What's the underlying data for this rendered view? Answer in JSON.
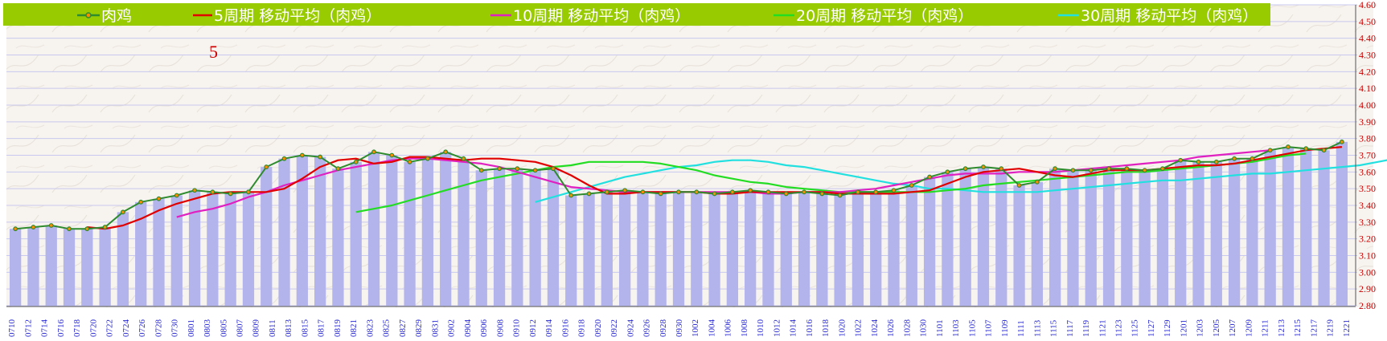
{
  "chart_data": {
    "type": "line",
    "annotation": "5",
    "ylim": [
      2.8,
      4.6
    ],
    "y_ticks": [
      "2.80",
      "2.90",
      "3.00",
      "3.10",
      "3.20",
      "3.30",
      "3.40",
      "3.50",
      "3.60",
      "3.70",
      "3.80",
      "3.90",
      "4.00",
      "4.10",
      "4.20",
      "4.30",
      "4.40",
      "4.50",
      "4.60"
    ],
    "x_tick_labels": [
      "0710",
      "0712",
      "0714",
      "0716",
      "0718",
      "0720",
      "0722",
      "0724",
      "0726",
      "0728",
      "0730",
      "0801",
      "0803",
      "0805",
      "0807",
      "0809",
      "0811",
      "0813",
      "0815",
      "0817",
      "0819",
      "0821",
      "0823",
      "0825",
      "0827",
      "0829",
      "0831",
      "0902",
      "0904",
      "0906",
      "0908",
      "0910",
      "0912",
      "0914",
      "0916",
      "0918",
      "0920",
      "0922",
      "0924",
      "0926",
      "0928",
      "0930",
      "1002",
      "1004",
      "1006",
      "1008",
      "1010",
      "1012",
      "1014",
      "1016",
      "1018",
      "1020",
      "1022",
      "1024",
      "1026",
      "1028",
      "1030",
      "1101",
      "1103",
      "1105",
      "1107",
      "1109",
      "1111",
      "1113",
      "1115",
      "1117",
      "1119",
      "1121",
      "1123",
      "1125",
      "1127",
      "1129",
      "1201",
      "1203",
      "1205",
      "1207",
      "1209",
      "1211",
      "1213",
      "1215",
      "1217",
      "1219",
      "1221"
    ],
    "series": [
      {
        "name": "肉鸡",
        "color": "#2e8b2e",
        "marker_fill": "#ff8c00",
        "markers": true,
        "stroke_width": 2,
        "values": [
          3.26,
          3.27,
          3.28,
          3.26,
          3.26,
          3.27,
          3.36,
          3.42,
          3.44,
          3.46,
          3.49,
          3.48,
          3.47,
          3.48,
          3.63,
          3.68,
          3.7,
          3.69,
          3.62,
          3.66,
          3.72,
          3.7,
          3.66,
          3.68,
          3.72,
          3.68,
          3.61,
          3.62,
          3.62,
          3.61,
          3.62,
          3.46,
          3.47,
          3.48,
          3.49,
          3.48,
          3.47,
          3.48,
          3.48,
          3.47,
          3.48,
          3.49,
          3.48,
          3.47,
          3.48,
          3.47,
          3.46,
          3.48,
          3.48,
          3.49,
          3.52,
          3.57,
          3.6,
          3.62,
          3.63,
          3.62,
          3.52,
          3.54,
          3.62,
          3.61,
          3.61,
          3.62,
          3.62,
          3.61,
          3.62,
          3.67,
          3.66,
          3.66,
          3.68,
          3.68,
          3.73,
          3.75,
          3.74,
          3.73,
          3.78
        ]
      },
      {
        "name": "5周期 移动平均（肉鸡）",
        "color": "#e00000",
        "markers": false,
        "stroke_width": 2.2,
        "start_index": 4,
        "values": [
          3.27,
          3.26,
          3.28,
          3.32,
          3.37,
          3.41,
          3.44,
          3.47,
          3.48,
          3.48,
          3.48,
          3.5,
          3.56,
          3.63,
          3.67,
          3.68,
          3.65,
          3.66,
          3.69,
          3.69,
          3.68,
          3.67,
          3.68,
          3.68,
          3.67,
          3.66,
          3.63,
          3.58,
          3.52,
          3.47,
          3.47,
          3.48,
          3.48,
          3.48,
          3.48,
          3.47,
          3.47,
          3.48,
          3.48,
          3.48,
          3.48,
          3.48,
          3.47,
          3.47,
          3.47,
          3.47,
          3.48,
          3.49,
          3.53,
          3.57,
          3.6,
          3.61,
          3.62,
          3.6,
          3.58,
          3.57,
          3.59,
          3.61,
          3.61,
          3.61,
          3.62,
          3.63,
          3.64,
          3.64,
          3.65,
          3.67,
          3.69,
          3.71,
          3.73,
          3.74,
          3.75
        ]
      },
      {
        "name": "10周期 移动平均（肉鸡）",
        "color": "#e020c0",
        "markers": false,
        "stroke_width": 2.2,
        "start_index": 9,
        "values": [
          3.33,
          3.36,
          3.38,
          3.41,
          3.45,
          3.48,
          3.52,
          3.55,
          3.58,
          3.61,
          3.63,
          3.65,
          3.67,
          3.68,
          3.68,
          3.67,
          3.66,
          3.65,
          3.63,
          3.6,
          3.57,
          3.54,
          3.51,
          3.5,
          3.49,
          3.48,
          3.48,
          3.48,
          3.48,
          3.48,
          3.48,
          3.48,
          3.48,
          3.47,
          3.47,
          3.48,
          3.48,
          3.48,
          3.49,
          3.5,
          3.52,
          3.54,
          3.56,
          3.58,
          3.59,
          3.59,
          3.59,
          3.6,
          3.6,
          3.6,
          3.61,
          3.62,
          3.63,
          3.64,
          3.65,
          3.66,
          3.67,
          3.69,
          3.7,
          3.71,
          3.72,
          3.73
        ]
      },
      {
        "name": "20周期 移动平均（肉鸡）",
        "color": "#22dd22",
        "markers": false,
        "stroke_width": 2.2,
        "start_index": 19,
        "values": [
          3.36,
          3.38,
          3.4,
          3.43,
          3.46,
          3.49,
          3.52,
          3.55,
          3.57,
          3.59,
          3.61,
          3.63,
          3.64,
          3.66,
          3.66,
          3.66,
          3.66,
          3.65,
          3.63,
          3.61,
          3.58,
          3.56,
          3.54,
          3.53,
          3.51,
          3.5,
          3.49,
          3.48,
          3.48,
          3.48,
          3.48,
          3.48,
          3.48,
          3.49,
          3.5,
          3.52,
          3.53,
          3.54,
          3.55,
          3.56,
          3.57,
          3.58,
          3.59,
          3.6,
          3.6,
          3.61,
          3.62,
          3.63,
          3.64,
          3.65,
          3.66,
          3.68,
          3.7,
          3.71
        ]
      },
      {
        "name": "30周期 移动平均（肉鸡）",
        "color": "#22e0e0",
        "markers": false,
        "stroke_width": 2.2,
        "start_index": 29,
        "values": [
          3.42,
          3.45,
          3.48,
          3.51,
          3.54,
          3.57,
          3.59,
          3.61,
          3.63,
          3.64,
          3.66,
          3.67,
          3.67,
          3.66,
          3.64,
          3.63,
          3.61,
          3.59,
          3.57,
          3.55,
          3.53,
          3.52,
          3.5,
          3.5,
          3.49,
          3.48,
          3.48,
          3.48,
          3.48,
          3.49,
          3.5,
          3.51,
          3.52,
          3.53,
          3.54,
          3.55,
          3.55,
          3.56,
          3.57,
          3.58,
          3.59,
          3.59,
          3.6,
          3.61,
          3.62,
          3.63,
          3.64,
          3.66,
          3.68
        ]
      }
    ],
    "colors": {
      "legend_bg": "#99cc00",
      "bar": "#b4b4ec",
      "grid": "#c8c8f0",
      "background": "#f7f3ee",
      "ytick": "#cc0000",
      "xtick": "#2a2ad0"
    }
  }
}
